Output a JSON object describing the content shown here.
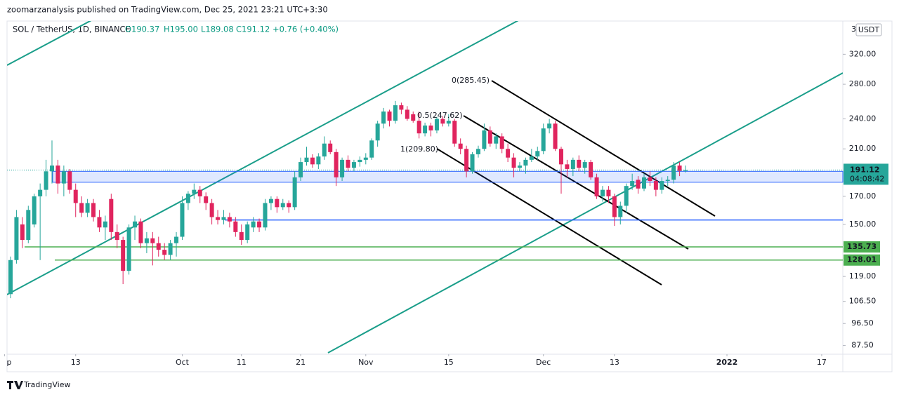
{
  "header": {
    "publisher": "zoomarzanalysis published on TradingView.com, Dec 25, 2021 23:21 UTC+3:30",
    "symbol": "SOL / TetherUS, 1D, BINANCE",
    "open": "O190.37",
    "high": "H195.00",
    "low": "L189.08",
    "close": "C191.12",
    "change": "+0.76 (+0.40%)",
    "scale_mark": "3",
    "currency": "USDT"
  },
  "footer": {
    "brand": "TradingView"
  },
  "chart_data": {
    "type": "candlestick",
    "x": [
      "Sep 2",
      "Sep 3",
      "Sep 4",
      "Sep 5",
      "Sep 6",
      "Sep 7",
      "Sep 8",
      "Sep 9",
      "Sep 10",
      "Sep 11",
      "Sep 12",
      "Sep 13",
      "Sep 14",
      "Sep 15",
      "Sep 16",
      "Sep 17",
      "Sep 18",
      "Sep 19",
      "Sep 20",
      "Sep 21",
      "Sep 22",
      "Sep 23",
      "Sep 24",
      "Sep 25",
      "Sep 26",
      "Sep 27",
      "Sep 28",
      "Sep 29",
      "Sep 30",
      "Oct 1",
      "Oct 2",
      "Oct 3",
      "Oct 4",
      "Oct 5",
      "Oct 6",
      "Oct 7",
      "Oct 8",
      "Oct 9",
      "Oct 10",
      "Oct 11",
      "Oct 12",
      "Oct 13",
      "Oct 14",
      "Oct 15",
      "Oct 16",
      "Oct 17",
      "Oct 18",
      "Oct 19",
      "Oct 20",
      "Oct 21",
      "Oct 22",
      "Oct 23",
      "Oct 24",
      "Oct 25",
      "Oct 26",
      "Oct 27",
      "Oct 28",
      "Oct 29",
      "Oct 30",
      "Oct 31",
      "Nov 1",
      "Nov 2",
      "Nov 3",
      "Nov 4",
      "Nov 5",
      "Nov 6",
      "Nov 7",
      "Nov 8",
      "Nov 9",
      "Nov 10",
      "Nov 11",
      "Nov 12",
      "Nov 13",
      "Nov 14",
      "Nov 15",
      "Nov 16",
      "Nov 17",
      "Nov 18",
      "Nov 19",
      "Nov 20",
      "Nov 21",
      "Nov 22",
      "Nov 23",
      "Nov 24",
      "Nov 25",
      "Nov 26",
      "Nov 27",
      "Nov 28",
      "Nov 29",
      "Nov 30",
      "Dec 1",
      "Dec 2",
      "Dec 3",
      "Dec 4",
      "Dec 5",
      "Dec 6",
      "Dec 7",
      "Dec 8",
      "Dec 9",
      "Dec 10",
      "Dec 11",
      "Dec 12",
      "Dec 13",
      "Dec 14",
      "Dec 15",
      "Dec 16",
      "Dec 17",
      "Dec 18",
      "Dec 19",
      "Dec 20",
      "Dec 21",
      "Dec 22",
      "Dec 23",
      "Dec 24",
      "Dec 25"
    ],
    "open": [
      110,
      128,
      150,
      140,
      150,
      170,
      175,
      190,
      195,
      180,
      190,
      175,
      165,
      158,
      165,
      155,
      148,
      168,
      145,
      140,
      122,
      148,
      152,
      138,
      141,
      138,
      134,
      131,
      138,
      142,
      165,
      172,
      175,
      170,
      165,
      155,
      153,
      155,
      152,
      145,
      140,
      148,
      152,
      148,
      165,
      168,
      162,
      165,
      162,
      185,
      198,
      202,
      196,
      203,
      215,
      207,
      185,
      200,
      193,
      198,
      200,
      202,
      218,
      235,
      248,
      238,
      255,
      250,
      245,
      238,
      225,
      233,
      228,
      240,
      235,
      238,
      215,
      210,
      190,
      205,
      210,
      228,
      215,
      222,
      210,
      202,
      193,
      195,
      200,
      203,
      208,
      230,
      235,
      210,
      196,
      192,
      200,
      193,
      198,
      185,
      170,
      175,
      170,
      155,
      163,
      178,
      183,
      176,
      185,
      182,
      175,
      182,
      183,
      195,
      190.37
    ],
    "high": [
      130,
      160,
      155,
      163,
      172,
      180,
      200,
      218,
      200,
      195,
      192,
      180,
      170,
      168,
      168,
      160,
      156,
      172,
      150,
      142,
      150,
      156,
      154,
      145,
      145,
      142,
      138,
      140,
      145,
      170,
      174,
      180,
      178,
      173,
      168,
      160,
      160,
      158,
      155,
      150,
      152,
      155,
      154,
      168,
      170,
      170,
      168,
      167,
      190,
      202,
      212,
      205,
      206,
      222,
      218,
      210,
      202,
      204,
      200,
      203,
      206,
      220,
      238,
      252,
      250,
      260,
      258,
      254,
      248,
      248,
      236,
      236,
      242,
      243,
      245,
      240,
      220,
      213,
      207,
      213,
      235,
      232,
      225,
      225,
      215,
      206,
      198,
      202,
      210,
      212,
      235,
      240,
      238,
      212,
      200,
      202,
      204,
      200,
      200,
      188,
      178,
      178,
      172,
      166,
      180,
      188,
      186,
      188,
      190,
      185,
      185,
      186,
      198,
      198,
      195.0
    ],
    "low": [
      108,
      126,
      135,
      138,
      148,
      128,
      170,
      180,
      172,
      170,
      172,
      155,
      155,
      155,
      152,
      145,
      140,
      140,
      135,
      115,
      120,
      140,
      135,
      132,
      125,
      130,
      128,
      128,
      130,
      140,
      160,
      168,
      165,
      160,
      150,
      150,
      150,
      148,
      142,
      137,
      138,
      145,
      145,
      146,
      160,
      158,
      160,
      158,
      160,
      182,
      195,
      193,
      192,
      200,
      205,
      178,
      182,
      190,
      190,
      194,
      196,
      200,
      212,
      230,
      232,
      235,
      245,
      238,
      236,
      220,
      222,
      222,
      225,
      232,
      232,
      212,
      205,
      185,
      188,
      202,
      208,
      212,
      210,
      206,
      198,
      185,
      190,
      188,
      198,
      200,
      205,
      225,
      208,
      172,
      185,
      186,
      190,
      188,
      183,
      168,
      166,
      165,
      149,
      150,
      158,
      175,
      172,
      174,
      178,
      170,
      172,
      178,
      180,
      186,
      189.08
    ],
    "close": [
      128,
      155,
      140,
      160,
      170,
      175,
      190,
      195,
      180,
      190,
      175,
      165,
      158,
      165,
      155,
      148,
      152,
      145,
      140,
      122,
      148,
      152,
      138,
      141,
      138,
      134,
      131,
      138,
      142,
      165,
      172,
      175,
      170,
      165,
      155,
      153,
      155,
      152,
      145,
      140,
      150,
      152,
      148,
      165,
      168,
      162,
      165,
      162,
      185,
      198,
      202,
      196,
      203,
      215,
      207,
      185,
      200,
      193,
      198,
      200,
      202,
      218,
      235,
      248,
      238,
      255,
      250,
      240,
      238,
      225,
      233,
      228,
      240,
      235,
      238,
      215,
      210,
      190,
      205,
      210,
      228,
      215,
      222,
      210,
      202,
      193,
      195,
      200,
      203,
      208,
      230,
      235,
      210,
      196,
      192,
      200,
      193,
      198,
      185,
      170,
      175,
      170,
      155,
      163,
      178,
      182,
      176,
      185,
      182,
      175,
      182,
      183,
      195,
      190.36,
      191.12
    ],
    "countdown": "04:08:42",
    "up_color": "#26a69a",
    "down_color": "#e0245e",
    "log_scale": true,
    "grid": false,
    "ylim": [
      84.7,
      371
    ],
    "yticks": [
      {
        "value": 87.5,
        "label": "87.50"
      },
      {
        "value": 96.5,
        "label": "96.50"
      },
      {
        "value": 106.5,
        "label": "106.50"
      },
      {
        "value": 119,
        "label": "119.00"
      },
      {
        "value": 150,
        "label": "150.00"
      },
      {
        "value": 170,
        "label": "170.00"
      },
      {
        "value": 210,
        "label": "210.00"
      },
      {
        "value": 240,
        "label": "240.00"
      },
      {
        "value": 280,
        "label": "280.00"
      },
      {
        "value": 320,
        "label": "320.00"
      }
    ],
    "xticks": [
      {
        "value": "Sep 1",
        "label": "p"
      },
      {
        "value": "Sep 13",
        "label": "13"
      },
      {
        "value": "Oct 1",
        "label": "Oct"
      },
      {
        "value": "Oct 11",
        "label": "11"
      },
      {
        "value": "Oct 21",
        "label": "21"
      },
      {
        "value": "Nov 1",
        "label": "Nov"
      },
      {
        "value": "Nov 15",
        "label": "15"
      },
      {
        "value": "Dec 1",
        "label": "Dec"
      },
      {
        "value": "Dec 13",
        "label": "13"
      },
      {
        "value": "Jan 1",
        "label": "2022"
      },
      {
        "value": "Jan 17",
        "label": "17"
      }
    ],
    "levels": [
      {
        "value": 135.73,
        "color": "#4caf50"
      },
      {
        "value": 128.01,
        "color": "#4caf50"
      }
    ],
    "support_line": {
      "value": 153,
      "color": "#2962ff"
    },
    "zone": {
      "low": 181,
      "high": 190,
      "color": "#2962ff"
    },
    "annotations": [
      "0(285.45)",
      "0.5(247.62)",
      "1(209.80)"
    ]
  }
}
